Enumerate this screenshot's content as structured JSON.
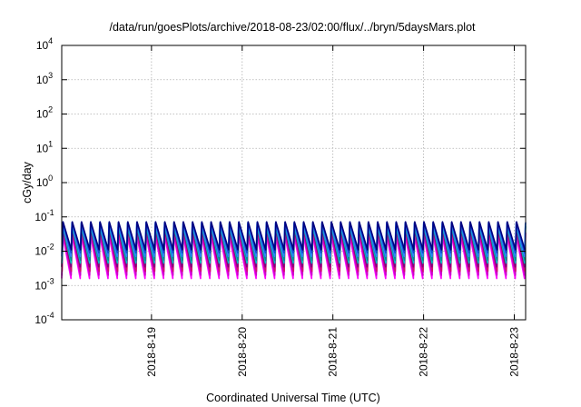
{
  "chart_data": {
    "type": "line",
    "title": "/data/run/goesPlots/archive/2018-08-23/02:00/flux/../bryn/5daysMars.plot",
    "xlabel": "Coordinated Universal Time (UTC)",
    "ylabel": "cGy/day",
    "yscale": "log",
    "ylim": [
      0.0001,
      10000
    ],
    "y_ticks": [
      {
        "base": "10",
        "exp": "-4"
      },
      {
        "base": "10",
        "exp": "-3"
      },
      {
        "base": "10",
        "exp": "-2"
      },
      {
        "base": "10",
        "exp": "-1"
      },
      {
        "base": "10",
        "exp": "0"
      },
      {
        "base": "10",
        "exp": "1"
      },
      {
        "base": "10",
        "exp": "2"
      },
      {
        "base": "10",
        "exp": "3"
      },
      {
        "base": "10",
        "exp": "4"
      }
    ],
    "xlim": [
      "2018-08-18T00:15",
      "2018-08-23T03:00"
    ],
    "x_ticks": [
      {
        "label": "2018-8-19",
        "value": "2018-08-19T00:00"
      },
      {
        "label": "2018-8-20",
        "value": "2018-08-20T00:00"
      },
      {
        "label": "2018-8-21",
        "value": "2018-08-21T00:00"
      },
      {
        "label": "2018-8-22",
        "value": "2018-08-22T00:00"
      },
      {
        "label": "2018-8-23",
        "value": "2018-08-23T00:00"
      }
    ],
    "grid": true,
    "legend": "none",
    "pattern": "sawtooth, ~9.8 cycles per day, sharp rise then decay",
    "series": [
      {
        "color": "#ff00ff",
        "peak": 0.03,
        "trough": 0.0016
      },
      {
        "color": "#cc00cc",
        "peak": 0.035,
        "trough": 0.002
      },
      {
        "color": "#d01070",
        "peak": 0.042,
        "trough": 0.0026
      },
      {
        "color": "#800080",
        "peak": 0.05,
        "trough": 0.0035
      },
      {
        "color": "#00c0c0",
        "peak": 0.055,
        "trough": 0.0045
      },
      {
        "color": "#009090",
        "peak": 0.06,
        "trough": 0.0055
      },
      {
        "color": "#3080ff",
        "peak": 0.065,
        "trough": 0.007
      },
      {
        "color": "#1050d0",
        "peak": 0.07,
        "trough": 0.009
      },
      {
        "color": "#000080",
        "peak": 0.072,
        "trough": 0.011
      }
    ]
  }
}
